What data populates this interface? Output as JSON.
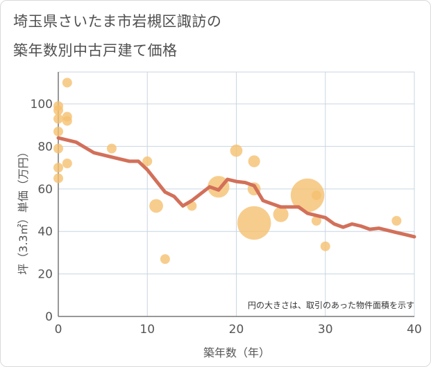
{
  "title": {
    "line1": "埼玉県さいたま市岩槻区諏訪の",
    "line2": "築年数別中古戸建て価格"
  },
  "colors": {
    "bubble": "#f5c071",
    "line": "#d2705a",
    "grid": "#c8d6e2",
    "axis": "#777777"
  },
  "chart_data": {
    "type": "scatter",
    "xlabel": "築年数（年）",
    "ylabel": "坪（3.3㎡）単価（万円）",
    "xlim": [
      0,
      40
    ],
    "ylim": [
      0,
      115
    ],
    "xticks": [
      0,
      10,
      20,
      30,
      40
    ],
    "yticks": [
      0,
      20,
      40,
      60,
      80,
      100
    ],
    "grid": true,
    "note": "円の大きさは、取引のあった物件面積を示す",
    "bubbles": [
      {
        "x": 0,
        "y": 99,
        "size": 1
      },
      {
        "x": 0,
        "y": 97,
        "size": 1
      },
      {
        "x": 0,
        "y": 93,
        "size": 1
      },
      {
        "x": 0,
        "y": 87,
        "size": 1
      },
      {
        "x": 0,
        "y": 79,
        "size": 1
      },
      {
        "x": 0,
        "y": 70,
        "size": 1
      },
      {
        "x": 0,
        "y": 65,
        "size": 1
      },
      {
        "x": 1,
        "y": 110,
        "size": 1
      },
      {
        "x": 1,
        "y": 94,
        "size": 1
      },
      {
        "x": 1,
        "y": 92,
        "size": 1
      },
      {
        "x": 1,
        "y": 72,
        "size": 1
      },
      {
        "x": 6,
        "y": 79,
        "size": 1
      },
      {
        "x": 10,
        "y": 73,
        "size": 1
      },
      {
        "x": 11,
        "y": 52,
        "size": 2
      },
      {
        "x": 12,
        "y": 27,
        "size": 1
      },
      {
        "x": 15,
        "y": 52,
        "size": 1
      },
      {
        "x": 18,
        "y": 61,
        "size": 5
      },
      {
        "x": 20,
        "y": 78,
        "size": 1.6
      },
      {
        "x": 22,
        "y": 73,
        "size": 1.5
      },
      {
        "x": 22,
        "y": 60,
        "size": 1.8
      },
      {
        "x": 22,
        "y": 44,
        "size": 12
      },
      {
        "x": 25,
        "y": 48,
        "size": 2.5
      },
      {
        "x": 28,
        "y": 57,
        "size": 12
      },
      {
        "x": 29,
        "y": 57,
        "size": 1
      },
      {
        "x": 29,
        "y": 45,
        "size": 1
      },
      {
        "x": 30,
        "y": 33,
        "size": 1
      },
      {
        "x": 38,
        "y": 45,
        "size": 1
      }
    ],
    "trend": {
      "x": [
        0,
        2,
        4,
        6,
        8,
        9,
        10,
        12,
        13,
        14,
        15,
        17,
        18,
        19,
        20,
        21,
        22,
        23,
        24,
        25,
        26,
        27,
        28,
        29,
        30,
        31,
        32,
        33,
        34,
        35,
        36,
        37,
        38,
        39,
        40
      ],
      "y": [
        84,
        82,
        77,
        75,
        73,
        73,
        69,
        58.5,
        56.5,
        52,
        54.5,
        61,
        59.5,
        64.5,
        63.5,
        63,
        61.5,
        54.5,
        53,
        51.5,
        51.5,
        51.5,
        48.5,
        47.5,
        46.5,
        43.5,
        42,
        43.5,
        42.5,
        41,
        41.5,
        40.5,
        39.5,
        38.5,
        37.5
      ]
    }
  }
}
